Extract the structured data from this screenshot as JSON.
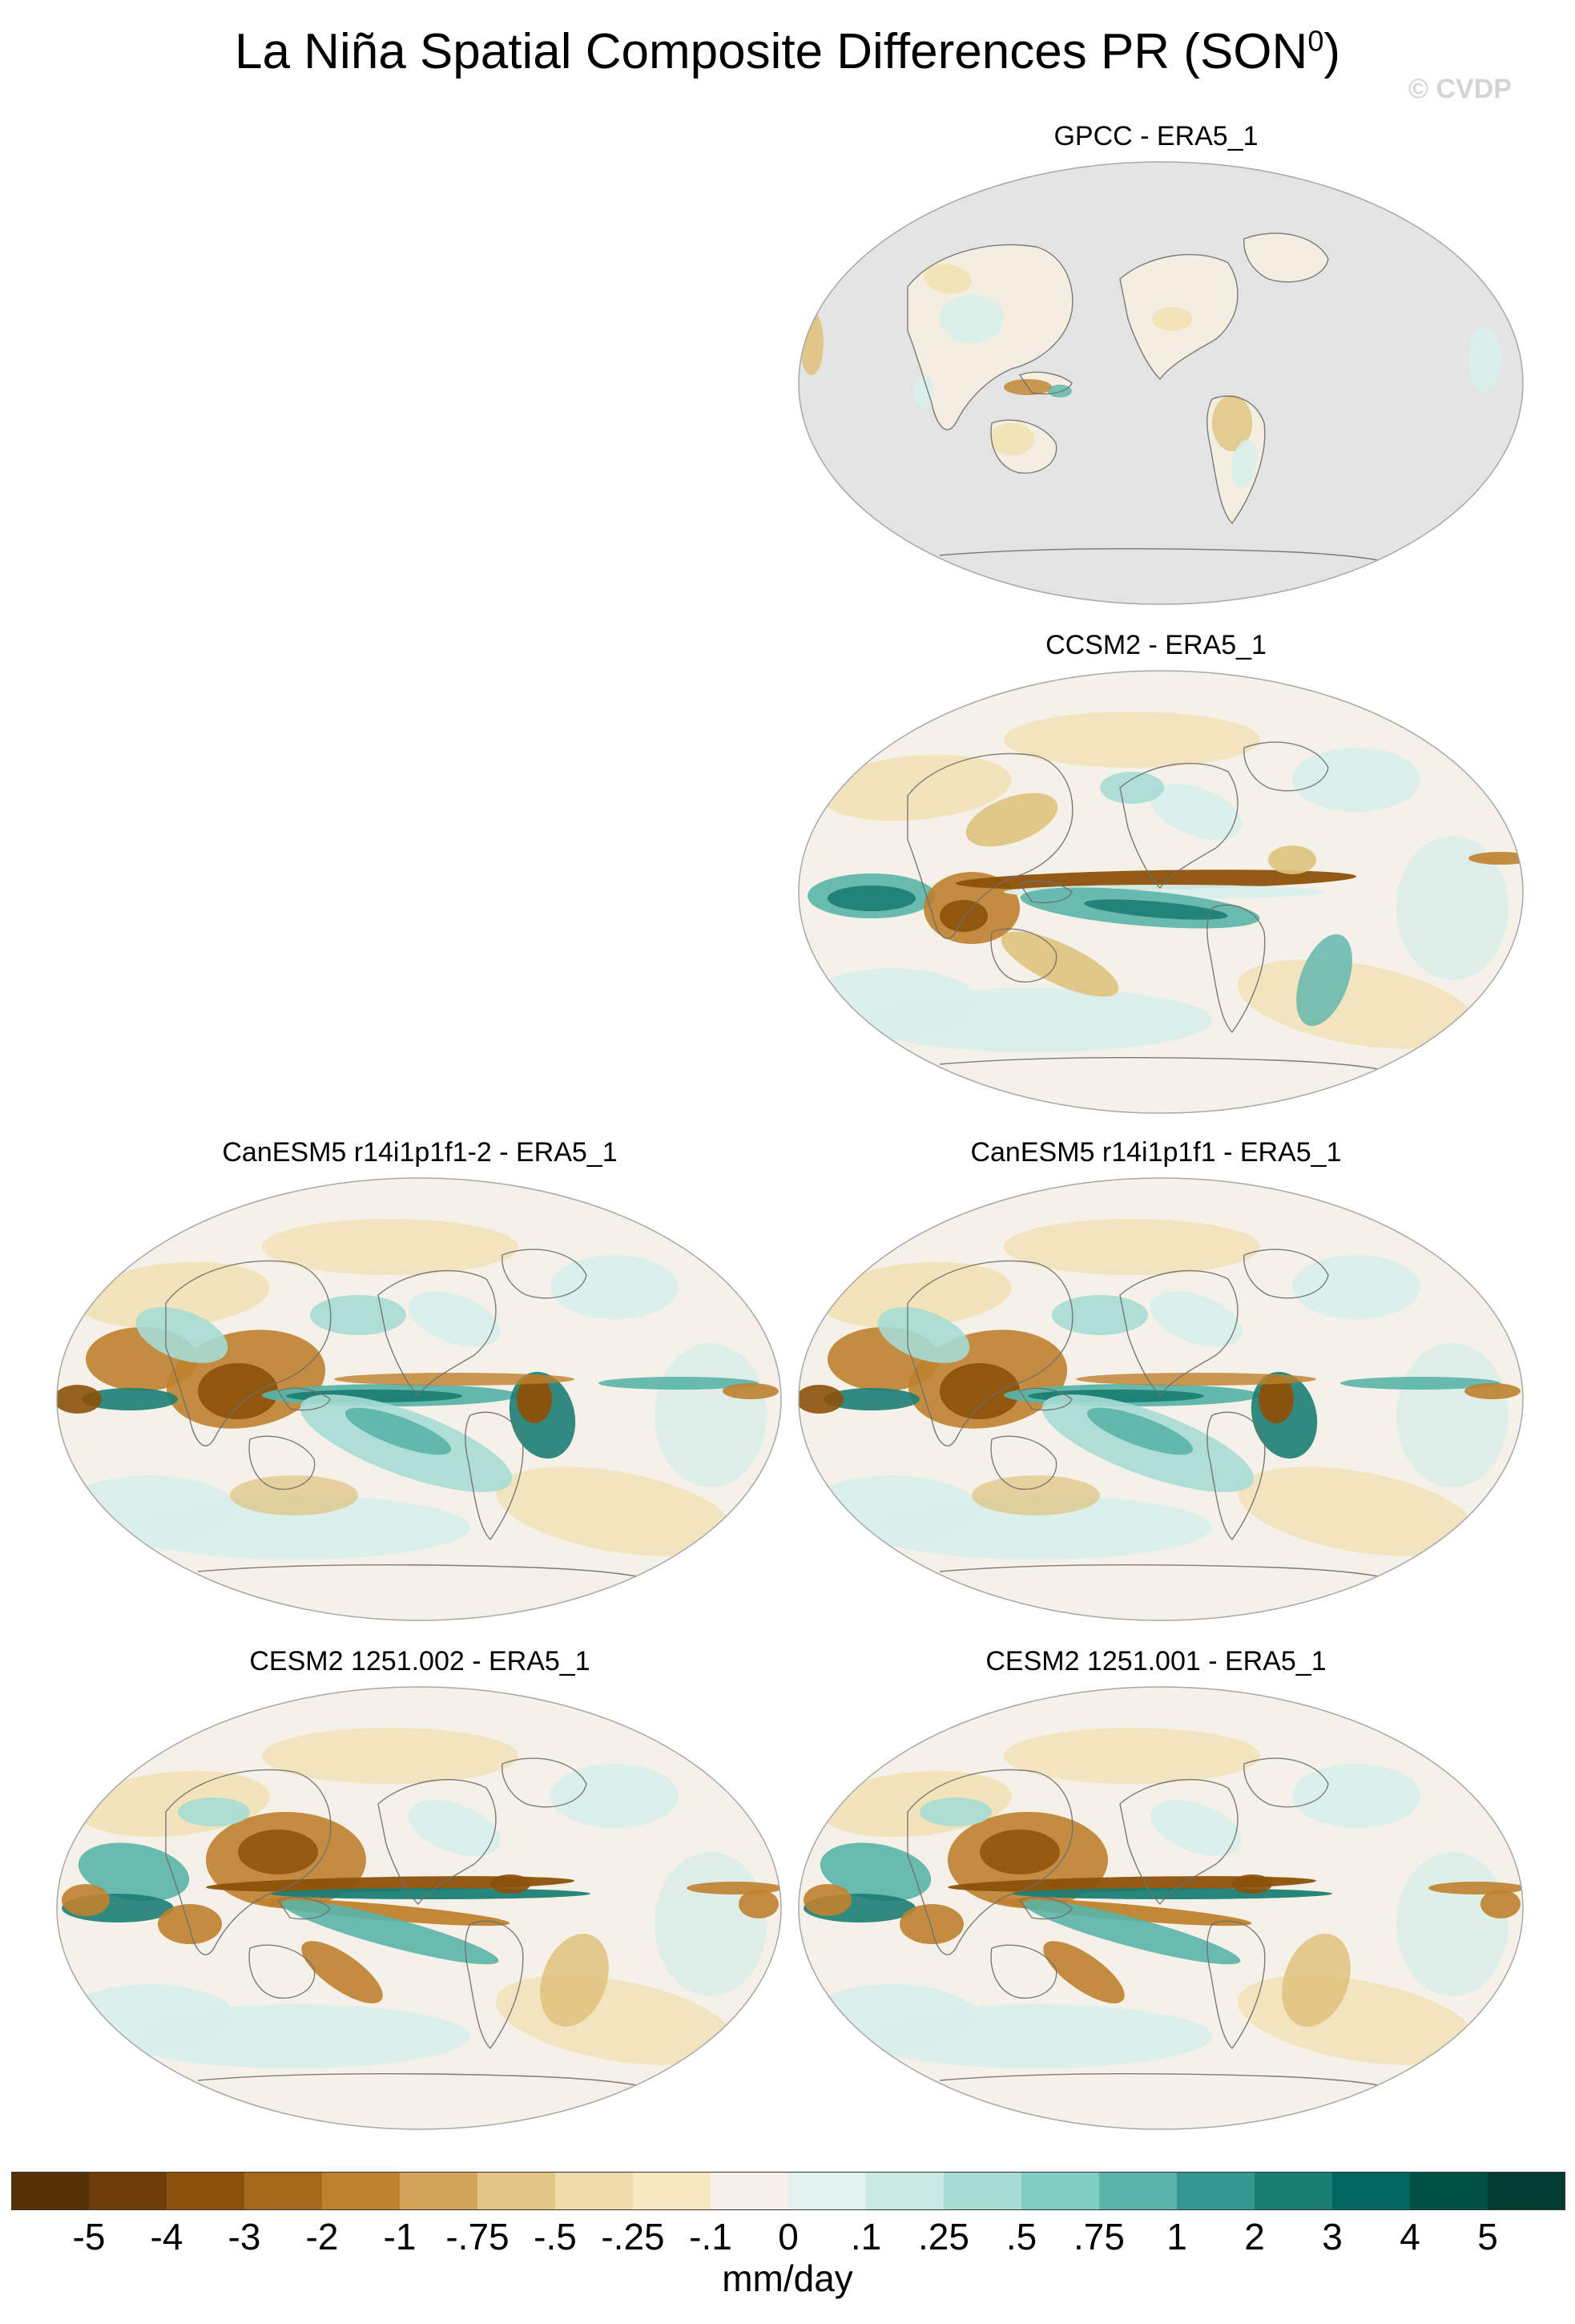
{
  "title": {
    "text": "La Niña Spatial Composite Differences PR (SON",
    "superscript": "0",
    "closing": ")"
  },
  "watermark": "© CVDP",
  "panels": [
    {
      "title": "GPCC - ERA5_1",
      "style": "obs"
    },
    {
      "title": "CCSM2 - ERA5_1",
      "style": "model-a"
    },
    {
      "title": "CanESM5 r14i1p1f1-2 - ERA5_1",
      "style": "model-b"
    },
    {
      "title": "CanESM5 r14i1p1f1 - ERA5_1",
      "style": "model-b"
    },
    {
      "title": "CESM2 1251.002 - ERA5_1",
      "style": "model-c"
    },
    {
      "title": "CESM2 1251.001 - ERA5_1",
      "style": "model-c"
    }
  ],
  "colorbar": {
    "colors": [
      "#543005",
      "#6e3d08",
      "#8c510a",
      "#a7691b",
      "#bf812d",
      "#d3a45a",
      "#e2c687",
      "#efdcac",
      "#f6e8c3",
      "#f5f1e8",
      "#e2f1ef",
      "#c7eae5",
      "#a6dcd4",
      "#80cdc1",
      "#5ab4a9",
      "#35978f",
      "#1b7e73",
      "#01665e",
      "#015046",
      "#003c30"
    ],
    "labels": [
      "-5",
      "-4",
      "-3",
      "-2",
      "-1",
      "-.75",
      "-.5",
      "-.25",
      "-.1",
      "0",
      ".1",
      ".25",
      ".5",
      ".75",
      "1",
      "2",
      "3",
      "4",
      "5"
    ],
    "units": "mm/day"
  }
}
